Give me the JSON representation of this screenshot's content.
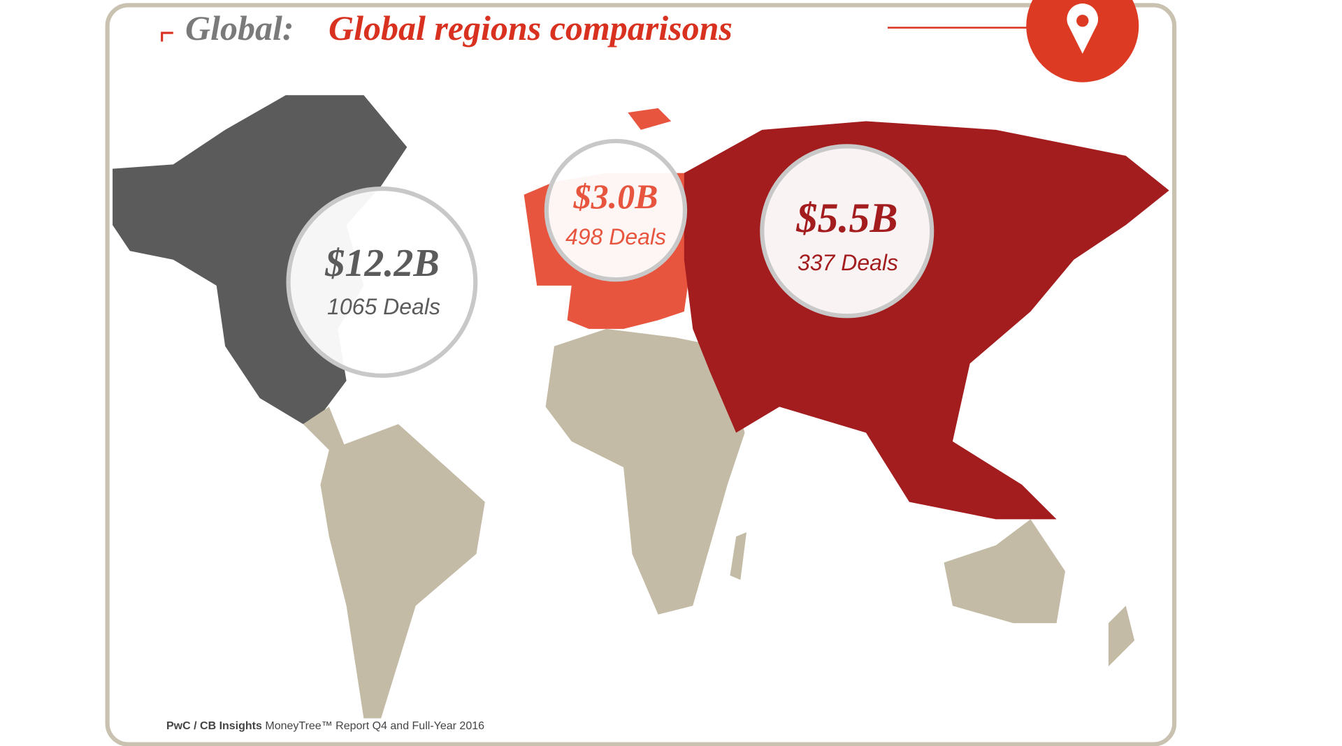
{
  "header": {
    "prefix": "Global:",
    "title": "Global regions comparisons"
  },
  "regions": [
    {
      "amount": "$12.2B",
      "deals": "1065 Deals"
    },
    {
      "amount": "$3.0B",
      "deals": "498 Deals"
    },
    {
      "amount": "$5.5B",
      "deals": "337 Deals"
    }
  ],
  "source": {
    "bold": "PwC / CB Insights",
    "text": "MoneyTree™ Report Q4 and Full-Year 2016"
  }
}
